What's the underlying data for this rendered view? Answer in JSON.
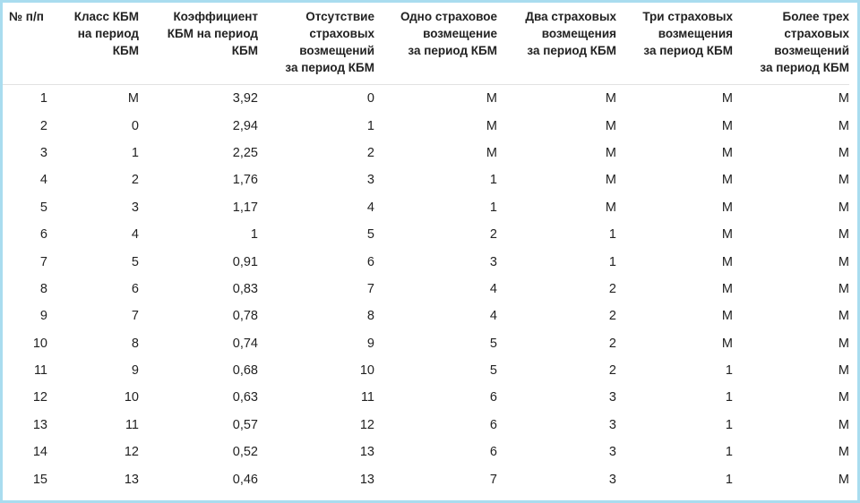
{
  "table": {
    "header": [
      "№ п/п",
      "Класс КБМ\nна период\nКБМ",
      "Коэффициент\nКБМ на период\nКБМ",
      "Отсутствие\nстраховых\nвозмещений\nза период КБМ",
      "Одно страховое\nвозмещение\nза период КБМ",
      "Два страховых\nвозмещения\nза период КБМ",
      "Три страховых\nвозмещения\nза период КБМ",
      "Более трех\nстраховых\nвозмещений\nза период КБМ"
    ],
    "rows": [
      [
        "1",
        "М",
        "3,92",
        "0",
        "М",
        "М",
        "М",
        "М"
      ],
      [
        "2",
        "0",
        "2,94",
        "1",
        "М",
        "М",
        "М",
        "М"
      ],
      [
        "3",
        "1",
        "2,25",
        "2",
        "М",
        "М",
        "М",
        "М"
      ],
      [
        "4",
        "2",
        "1,76",
        "3",
        "1",
        "М",
        "М",
        "М"
      ],
      [
        "5",
        "3",
        "1,17",
        "4",
        "1",
        "М",
        "М",
        "М"
      ],
      [
        "6",
        "4",
        "1",
        "5",
        "2",
        "1",
        "М",
        "М"
      ],
      [
        "7",
        "5",
        "0,91",
        "6",
        "3",
        "1",
        "М",
        "М"
      ],
      [
        "8",
        "6",
        "0,83",
        "7",
        "4",
        "2",
        "М",
        "М"
      ],
      [
        "9",
        "7",
        "0,78",
        "8",
        "4",
        "2",
        "М",
        "М"
      ],
      [
        "10",
        "8",
        "0,74",
        "9",
        "5",
        "2",
        "М",
        "М"
      ],
      [
        "11",
        "9",
        "0,68",
        "10",
        "5",
        "2",
        "1",
        "М"
      ],
      [
        "12",
        "10",
        "0,63",
        "11",
        "6",
        "3",
        "1",
        "М"
      ],
      [
        "13",
        "11",
        "0,57",
        "12",
        "6",
        "3",
        "1",
        "М"
      ],
      [
        "14",
        "12",
        "0,52",
        "13",
        "6",
        "3",
        "1",
        "М"
      ],
      [
        "15",
        "13",
        "0,46",
        "13",
        "7",
        "3",
        "1",
        "М"
      ]
    ]
  }
}
